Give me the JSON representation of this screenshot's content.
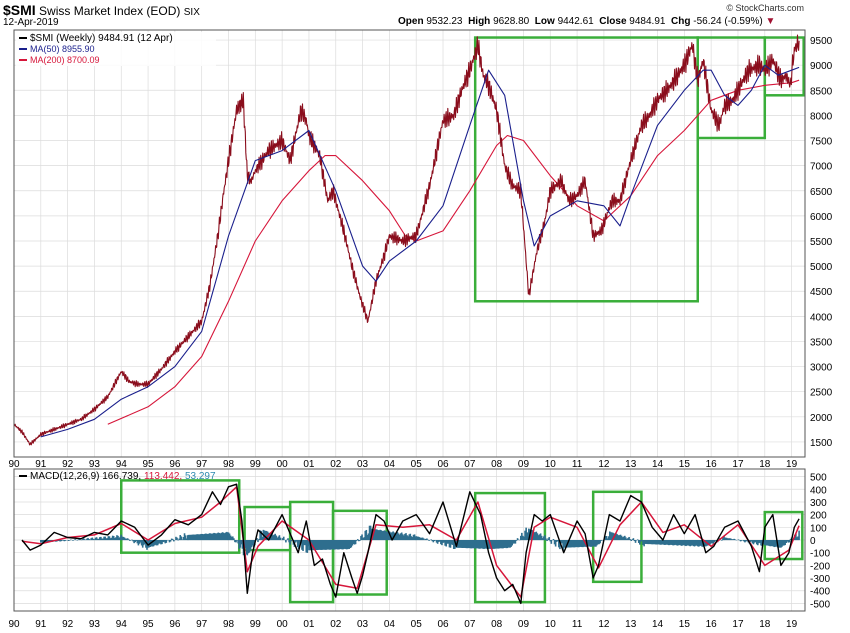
{
  "header": {
    "symbol": "$SMI",
    "name": "Swiss Market Index (EOD)",
    "exchange": "SIX",
    "date": "12-Apr-2019",
    "watermark": "© StockCharts.com",
    "open_label": "Open",
    "open": "9532.23",
    "high_label": "High",
    "high": "9628.80",
    "low_label": "Low",
    "low": "9442.61",
    "close_label": "Close",
    "close": "9484.91",
    "chg_label": "Chg",
    "chg": "-56.24 (-0.59%)",
    "chg_arrow": "▼"
  },
  "legend": {
    "price": "$SMI (Weekly) 9484.91 (12 Apr)",
    "ma50": "MA(50) 8955.90",
    "ma200": "MA(200) 8700.09"
  },
  "macd_legend": {
    "label": "MACD(12,26,9)",
    "macd": "166.739,",
    "signal": "113.442,",
    "hist": "53.297"
  },
  "colors": {
    "price": "#8a0d1c",
    "ma50": "#1a1f8c",
    "ma200": "#d6163a",
    "macd": "#000000",
    "signal": "#d6163a",
    "hist": "#2e6e8e",
    "box": "#3aae3a",
    "grid": "#dcdcdc"
  },
  "chart_data": [
    {
      "type": "line",
      "title": "$SMI Swiss Market Index (EOD) weekly",
      "x_ticks": [
        "90",
        "91",
        "92",
        "93",
        "94",
        "95",
        "96",
        "97",
        "98",
        "99",
        "00",
        "01",
        "02",
        "03",
        "04",
        "05",
        "06",
        "07",
        "08",
        "09",
        "10",
        "11",
        "12",
        "13",
        "14",
        "15",
        "16",
        "17",
        "18",
        "19"
      ],
      "ylim": [
        1200,
        9700
      ],
      "y_ticks": [
        1500,
        2000,
        2500,
        3000,
        3500,
        4000,
        4500,
        5000,
        5500,
        6000,
        6500,
        7000,
        7500,
        8000,
        8500,
        9000,
        9500
      ],
      "series": [
        {
          "name": "$SMI (Weekly)",
          "x": [
            1990.0,
            1990.3,
            1990.6,
            1990.8,
            1991.0,
            1991.5,
            1992.0,
            1992.5,
            1993.0,
            1993.5,
            1994.0,
            1994.3,
            1994.6,
            1995.0,
            1995.5,
            1996.0,
            1996.5,
            1997.0,
            1997.3,
            1997.6,
            1997.8,
            1998.0,
            1998.3,
            1998.55,
            1998.7,
            1998.85,
            1999.0,
            1999.5,
            2000.0,
            2000.3,
            2000.7,
            2000.9,
            2001.0,
            2001.4,
            2001.7,
            2001.9,
            2002.3,
            2002.6,
            2002.9,
            2003.2,
            2003.5,
            2003.8,
            2004.0,
            2004.5,
            2005.0,
            2005.5,
            2006.0,
            2006.4,
            2006.7,
            2007.0,
            2007.3,
            2007.5,
            2007.7,
            2008.0,
            2008.3,
            2008.6,
            2008.9,
            2009.2,
            2009.5,
            2009.8,
            2010.0,
            2010.4,
            2010.7,
            2011.0,
            2011.3,
            2011.6,
            2011.9,
            2012.3,
            2012.6,
            2013.0,
            2013.4,
            2013.7,
            2014.0,
            2014.5,
            2015.0,
            2015.3,
            2015.5,
            2015.7,
            2016.0,
            2016.3,
            2016.5,
            2016.8,
            2017.0,
            2017.4,
            2017.8,
            2018.0,
            2018.3,
            2018.6,
            2018.8,
            2018.95,
            2019.1,
            2019.28
          ],
          "y": [
            1850,
            1700,
            1450,
            1550,
            1650,
            1750,
            1850,
            1950,
            2150,
            2400,
            2900,
            2700,
            2650,
            2650,
            2950,
            3300,
            3600,
            3900,
            4600,
            5600,
            6400,
            7100,
            8100,
            8300,
            6800,
            6700,
            6900,
            7300,
            7500,
            7100,
            8100,
            7900,
            7600,
            7200,
            6300,
            6500,
            5700,
            5000,
            4400,
            3900,
            4700,
            5200,
            5600,
            5500,
            5600,
            6600,
            7900,
            8000,
            8500,
            8900,
            9400,
            8800,
            8600,
            8100,
            7000,
            6600,
            6500,
            4400,
            5300,
            5900,
            6500,
            6700,
            6300,
            6400,
            6700,
            5600,
            5700,
            6300,
            6300,
            7100,
            7800,
            8000,
            8300,
            8600,
            9000,
            9400,
            8700,
            9100,
            8100,
            7800,
            8200,
            8300,
            8500,
            8900,
            9000,
            8900,
            9100,
            8700,
            8800,
            8600,
            9300,
            9485
          ]
        },
        {
          "name": "MA(50)",
          "x": [
            1991.0,
            1992.0,
            1993.0,
            1994.0,
            1995.0,
            1996.0,
            1997.0,
            1998.0,
            1999.0,
            2000.0,
            2001.0,
            2002.0,
            2003.0,
            2003.5,
            2004.0,
            2005.0,
            2006.0,
            2007.0,
            2007.7,
            2008.3,
            2009.0,
            2009.4,
            2010.0,
            2011.0,
            2012.0,
            2012.6,
            2013.0,
            2014.0,
            2015.0,
            2015.7,
            2016.0,
            2016.5,
            2017.0,
            2017.5,
            2018.0,
            2018.5,
            2019.0,
            2019.28
          ],
          "y": [
            1600,
            1750,
            1950,
            2350,
            2600,
            3000,
            3700,
            5600,
            7100,
            7300,
            7700,
            6500,
            5000,
            4700,
            5100,
            5500,
            6200,
            7800,
            8900,
            8400,
            6300,
            5400,
            6000,
            6300,
            6200,
            5800,
            6400,
            7800,
            8500,
            8900,
            8900,
            8400,
            8200,
            8500,
            9000,
            8800,
            8900,
            8956
          ]
        },
        {
          "name": "MA(200)",
          "x": [
            1993.5,
            1995.0,
            1996.0,
            1997.0,
            1998.0,
            1999.0,
            2000.0,
            2001.0,
            2001.6,
            2002.0,
            2003.0,
            2004.0,
            2004.6,
            2005.0,
            2006.0,
            2007.0,
            2008.0,
            2008.4,
            2009.0,
            2010.0,
            2011.0,
            2012.0,
            2013.0,
            2014.0,
            2015.0,
            2016.0,
            2017.0,
            2018.0,
            2019.0,
            2019.28
          ],
          "y": [
            1850,
            2200,
            2600,
            3200,
            4300,
            5500,
            6300,
            6900,
            7200,
            7200,
            6700,
            6100,
            5600,
            5500,
            5700,
            6500,
            7400,
            7600,
            7500,
            6800,
            6200,
            5900,
            6400,
            7200,
            7700,
            8300,
            8500,
            8600,
            8650,
            8700
          ]
        }
      ]
    },
    {
      "type": "line",
      "title": "MACD(12,26,9)",
      "ylim": [
        -560,
        560
      ],
      "y_ticks": [
        -500,
        -400,
        -300,
        -200,
        -100,
        0,
        100,
        200,
        300,
        400,
        500
      ],
      "series": [
        {
          "name": "MACD",
          "x": [
            1990.3,
            1990.6,
            1991.0,
            1991.5,
            1992.0,
            1992.5,
            1993.0,
            1993.5,
            1994.0,
            1994.5,
            1995.0,
            1995.5,
            1996.0,
            1996.5,
            1997.0,
            1997.4,
            1997.7,
            1998.0,
            1998.3,
            1998.5,
            1998.7,
            1998.9,
            1999.1,
            1999.5,
            2000.0,
            2000.3,
            2000.6,
            2000.9,
            2001.2,
            2001.5,
            2001.8,
            2002.0,
            2002.3,
            2002.6,
            2002.8,
            2003.0,
            2003.2,
            2003.5,
            2003.8,
            2004.1,
            2004.5,
            2005.0,
            2005.5,
            2006.0,
            2006.5,
            2007.0,
            2007.4,
            2007.7,
            2008.0,
            2008.3,
            2008.6,
            2008.9,
            2009.1,
            2009.4,
            2009.7,
            2010.0,
            2010.5,
            2011.0,
            2011.3,
            2011.6,
            2011.8,
            2012.2,
            2012.6,
            2013.0,
            2013.4,
            2013.8,
            2014.2,
            2014.6,
            2015.0,
            2015.4,
            2015.8,
            2016.1,
            2016.5,
            2017.0,
            2017.5,
            2017.8,
            2018.0,
            2018.3,
            2018.6,
            2018.9,
            2019.1,
            2019.28
          ],
          "y": [
            0,
            -80,
            -40,
            60,
            20,
            10,
            60,
            40,
            150,
            100,
            -40,
            40,
            160,
            120,
            200,
            380,
            280,
            420,
            440,
            150,
            -420,
            -100,
            80,
            0,
            200,
            50,
            -100,
            150,
            -200,
            -150,
            -350,
            -450,
            -100,
            -300,
            -420,
            -280,
            -100,
            200,
            150,
            0,
            150,
            200,
            50,
            300,
            -50,
            380,
            200,
            -100,
            -300,
            -400,
            -350,
            -500,
            -100,
            200,
            150,
            200,
            -100,
            150,
            50,
            -300,
            -200,
            200,
            150,
            350,
            300,
            100,
            0,
            200,
            50,
            200,
            -100,
            -50,
            100,
            150,
            -50,
            -250,
            100,
            200,
            -200,
            -100,
            100,
            167
          ]
        },
        {
          "name": "Signal",
          "x": [
            1990.3,
            1991.0,
            1992.0,
            1993.0,
            1994.0,
            1995.0,
            1996.0,
            1997.0,
            1997.7,
            1998.3,
            1998.7,
            1999.1,
            2000.0,
            2001.0,
            2002.0,
            2002.8,
            2003.5,
            2004.5,
            2005.5,
            2006.5,
            2007.3,
            2008.0,
            2008.9,
            2009.4,
            2010.0,
            2011.0,
            2011.8,
            2012.6,
            2013.4,
            2014.2,
            2015.0,
            2016.0,
            2017.0,
            2018.0,
            2018.9,
            2019.28
          ],
          "y": [
            -10,
            -30,
            20,
            40,
            130,
            0,
            130,
            180,
            300,
            420,
            -250,
            -50,
            150,
            0,
            -350,
            -380,
            120,
            100,
            120,
            0,
            300,
            -200,
            -450,
            100,
            180,
            100,
            -220,
            120,
            300,
            60,
            120,
            -50,
            120,
            -200,
            -80,
            113
          ]
        },
        {
          "name": "Histogram",
          "x": [
            1991.0,
            1994.0,
            1995.0,
            1996.5,
            1998.0,
            1998.7,
            1999.3,
            2001.0,
            2002.5,
            2003.3,
            2005.0,
            2006.5,
            2007.8,
            2008.5,
            2009.2,
            2010.5,
            2011.7,
            2012.3,
            2013.5,
            2015.8,
            2016.5,
            2018.0,
            2018.6,
            2019.28
          ],
          "y": [
            -20,
            30,
            -60,
            40,
            60,
            -120,
            80,
            -80,
            -70,
            90,
            30,
            -60,
            -70,
            -60,
            90,
            -60,
            -50,
            60,
            -30,
            -50,
            20,
            -40,
            -60,
            53
          ]
        }
      ]
    }
  ]
}
